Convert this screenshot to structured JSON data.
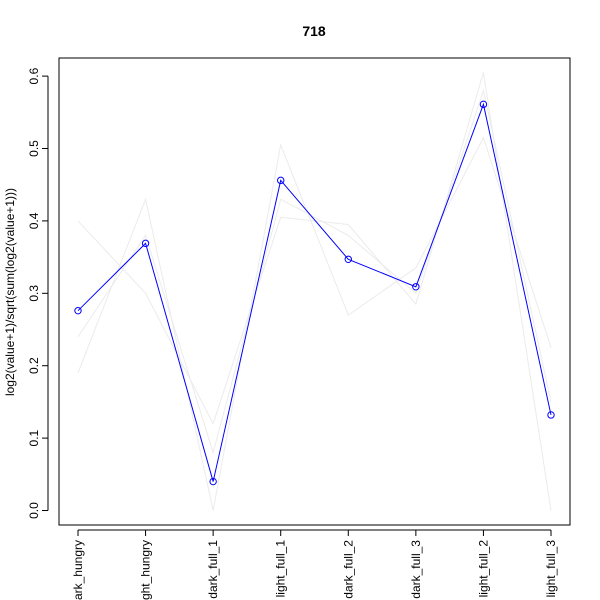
{
  "chart_data": {
    "type": "line",
    "title": "718",
    "xlabel": "",
    "ylabel": "log2(value+1)/sqrt(sum(log2(value+1)))",
    "categories": [
      "dark_hungry",
      "light_hungry",
      "dark_full_1",
      "light_full_1",
      "dark_full_2",
      "dark_full_3",
      "light_full_2",
      "light_full_3"
    ],
    "category_labels_shown": [
      "ark_hungry",
      "ght_hungry",
      "dark_full_1",
      "light_full_1",
      "dark_full_2",
      "dark_full_3",
      "light_full_2",
      "light_full_3"
    ],
    "ylim": [
      -0.02,
      0.625
    ],
    "yticks": [
      "0.0",
      "0.1",
      "0.2",
      "0.3",
      "0.4",
      "0.5",
      "0.6"
    ],
    "ytick_values": [
      0.0,
      0.1,
      0.2,
      0.3,
      0.4,
      0.5,
      0.6
    ],
    "series": [
      {
        "values": [
          0.276,
          0.369,
          0.04,
          0.456,
          0.347,
          0.309,
          0.561,
          0.132
        ],
        "color": "#0000ff",
        "markers": true
      },
      {
        "values": [
          0.4,
          0.3,
          0.12,
          0.405,
          0.395,
          0.285,
          0.605,
          0.0
        ],
        "color": "#ebebeb",
        "markers": false
      },
      {
        "values": [
          0.19,
          0.43,
          0.0,
          0.505,
          0.27,
          0.335,
          0.515,
          0.225
        ],
        "color": "#ebebeb",
        "markers": false
      },
      {
        "values": [
          0.24,
          0.38,
          0.08,
          0.43,
          0.38,
          0.3,
          0.58,
          0.15
        ],
        "color": "#ebebeb",
        "markers": false
      }
    ],
    "grid": false,
    "legend": "none"
  }
}
